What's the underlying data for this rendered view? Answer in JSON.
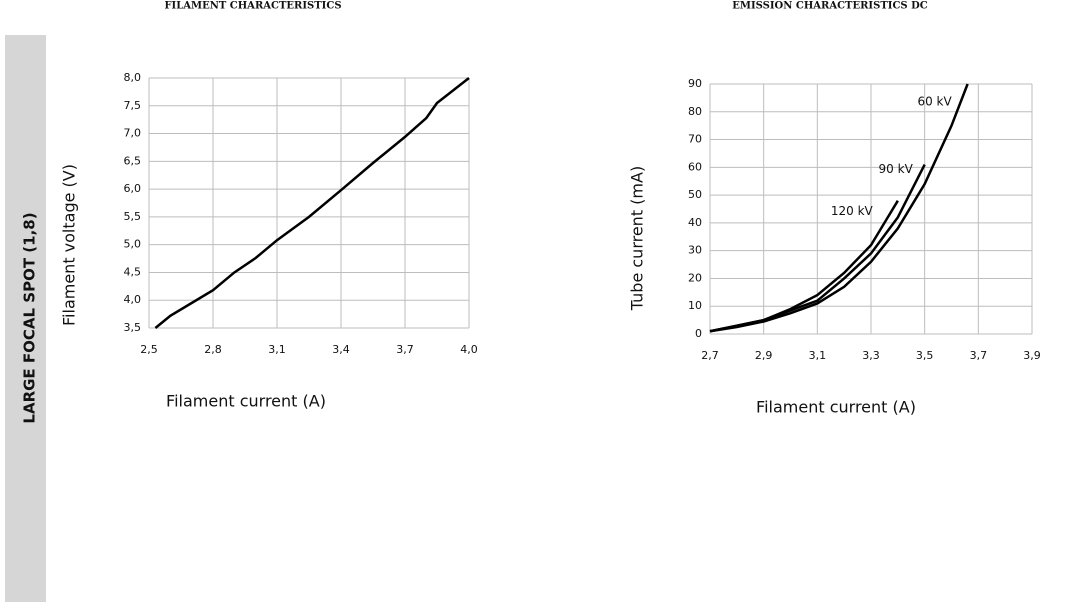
{
  "side_label": "LARGE FOCAL SPOT (1,8)",
  "chart_data": [
    {
      "type": "line",
      "title": "FILAMENT CHARACTERISTICS",
      "x_label": "Filament current (A)",
      "y_label": "Filament voltage (V)",
      "x": [
        2.53,
        2.6,
        2.7,
        2.8,
        2.9,
        3.0,
        3.1,
        3.25,
        3.4,
        3.55,
        3.7,
        3.8,
        3.85,
        4.0
      ],
      "values": [
        3.5,
        3.72,
        3.95,
        4.18,
        4.5,
        4.76,
        5.08,
        5.5,
        5.98,
        6.47,
        6.94,
        7.28,
        7.55,
        8.0
      ],
      "color": "#000000",
      "xlim": [
        2.5,
        4.0
      ],
      "xticks": [
        {
          "value": 2.5,
          "label": "2,5"
        },
        {
          "value": 2.8,
          "label": "2,8"
        },
        {
          "value": 3.1,
          "label": "3,1"
        },
        {
          "value": 3.4,
          "label": "3,4"
        },
        {
          "value": 3.7,
          "label": "3,7"
        },
        {
          "value": 4.0,
          "label": "4,0"
        }
      ],
      "ylim": [
        3.5,
        8.0
      ],
      "yticks": [
        {
          "value": 3.5,
          "label": "3,5"
        },
        {
          "value": 4.0,
          "label": "4,0"
        },
        {
          "value": 4.5,
          "label": "4,5"
        },
        {
          "value": 5.0,
          "label": "5,0"
        },
        {
          "value": 5.5,
          "label": "5,5"
        },
        {
          "value": 6.0,
          "label": "6,0"
        },
        {
          "value": 6.5,
          "label": "6,5"
        },
        {
          "value": 7.0,
          "label": "7,0"
        },
        {
          "value": 7.5,
          "label": "7,5"
        },
        {
          "value": 8.0,
          "label": "8,0"
        }
      ],
      "grid": true
    },
    {
      "type": "line",
      "title": "EMISSION CHARACTERISTICS DC",
      "x_label": "Filament current (A)",
      "y_label": "Tube current (mA)",
      "series": [
        {
          "name": "60 kV",
          "color": "#000000",
          "x": [
            2.7,
            2.8,
            2.9,
            3.0,
            3.1,
            3.2,
            3.3,
            3.4,
            3.5,
            3.6,
            3.66
          ],
          "values": [
            1,
            2.5,
            4.5,
            7.5,
            11,
            17,
            26,
            38,
            54,
            75,
            90
          ]
        },
        {
          "name": "90 kV",
          "color": "#000000",
          "x": [
            2.7,
            2.8,
            2.9,
            3.0,
            3.1,
            3.2,
            3.3,
            3.4,
            3.5
          ],
          "values": [
            1,
            3,
            5,
            8.5,
            12,
            20,
            29,
            42,
            61
          ]
        },
        {
          "name": "120 kV",
          "color": "#000000",
          "x": [
            2.7,
            2.8,
            2.9,
            3.0,
            3.1,
            3.2,
            3.3,
            3.4
          ],
          "values": [
            1,
            3,
            5,
            9,
            14,
            22,
            32,
            48
          ]
        }
      ],
      "xlim": [
        2.7,
        3.9
      ],
      "xticks": [
        {
          "value": 2.7,
          "label": "2,7"
        },
        {
          "value": 2.9,
          "label": "2,9"
        },
        {
          "value": 3.1,
          "label": "3,1"
        },
        {
          "value": 3.3,
          "label": "3,3"
        },
        {
          "value": 3.5,
          "label": "3,5"
        },
        {
          "value": 3.7,
          "label": "3,7"
        },
        {
          "value": 3.9,
          "label": "3,9"
        }
      ],
      "ylim": [
        0,
        90
      ],
      "yticks": [
        0,
        10,
        20,
        30,
        40,
        50,
        60,
        70,
        80,
        90
      ],
      "grid": true
    }
  ]
}
